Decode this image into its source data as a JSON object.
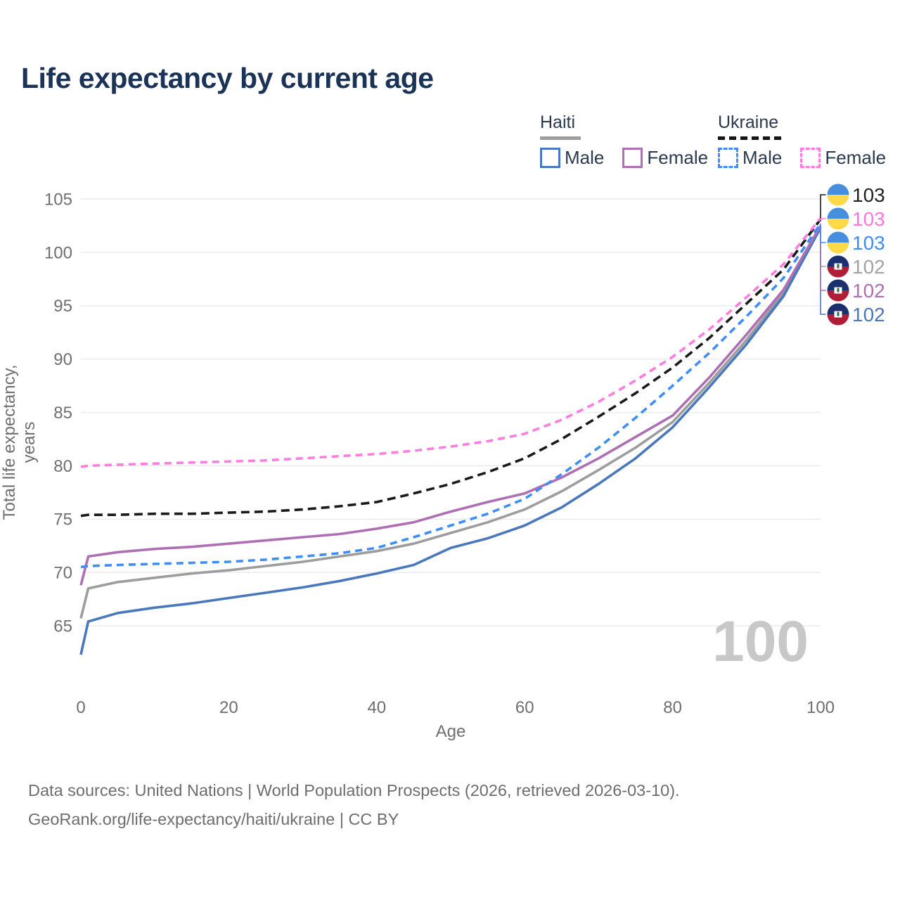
{
  "title": "Life expectancy by current age",
  "legend": {
    "groups": [
      {
        "label": "Haiti",
        "line_style": "solid",
        "underline_color": "#9e9e9e",
        "items": [
          {
            "label": "Male",
            "color": "#4a78bd",
            "dashed": false
          },
          {
            "label": "Female",
            "color": "#ae6fb4",
            "dashed": false
          }
        ]
      },
      {
        "label": "Ukraine",
        "line_style": "dashed",
        "underline_color": "#141414",
        "items": [
          {
            "label": "Male",
            "color": "#3e8ef7",
            "dashed": true
          },
          {
            "label": "Female",
            "color": "#ff7ce0",
            "dashed": true
          }
        ]
      }
    ]
  },
  "chart_data": {
    "type": "line",
    "title": "Life expectancy by current age",
    "xlabel": "Age",
    "ylabel": "Total life expectancy, years",
    "xlim": [
      0,
      100
    ],
    "ylim": [
      65,
      105
    ],
    "xticks": [
      0,
      20,
      40,
      60,
      80,
      100
    ],
    "yticks": [
      65,
      70,
      75,
      80,
      85,
      90,
      95,
      100,
      105
    ],
    "grid": "horizontal",
    "legend_position": "top-right",
    "watermark": "100",
    "x": [
      0,
      1,
      5,
      10,
      15,
      20,
      25,
      30,
      35,
      40,
      45,
      50,
      55,
      60,
      65,
      70,
      75,
      80,
      85,
      90,
      95,
      100
    ],
    "series": [
      {
        "name": "Haiti Total",
        "country": "Haiti",
        "sex": "both",
        "color": "#9d9d9d",
        "dashed": false,
        "flag": "haiti-flag",
        "end_label": "102",
        "end_label_color": "#a3a3a3",
        "label_row": 3,
        "values": [
          65.7,
          68.5,
          69.1,
          69.5,
          69.9,
          70.2,
          70.6,
          71.0,
          71.5,
          72.0,
          72.7,
          73.7,
          74.7,
          75.9,
          77.6,
          79.6,
          81.7,
          84.1,
          87.8,
          91.8,
          96.2,
          102.4
        ]
      },
      {
        "name": "Haiti Male",
        "country": "Haiti",
        "sex": "male",
        "color": "#4a78bd",
        "dashed": false,
        "flag": "haiti-flag",
        "end_label": "102",
        "end_label_color": "#4a78bd",
        "label_row": 5,
        "values": [
          62.3,
          65.4,
          66.2,
          66.7,
          67.1,
          67.6,
          68.1,
          68.6,
          69.2,
          69.9,
          70.7,
          72.3,
          73.2,
          74.4,
          76.1,
          78.3,
          80.7,
          83.6,
          87.4,
          91.4,
          95.9,
          102.3
        ]
      },
      {
        "name": "Haiti Female",
        "country": "Haiti",
        "sex": "female",
        "color": "#ae6fb4",
        "dashed": false,
        "flag": "haiti-flag",
        "end_label": "102",
        "end_label_color": "#b06fb2",
        "label_row": 4,
        "values": [
          68.8,
          71.5,
          71.9,
          72.2,
          72.4,
          72.7,
          73.0,
          73.3,
          73.6,
          74.1,
          74.7,
          75.7,
          76.6,
          77.4,
          78.9,
          80.7,
          82.7,
          84.7,
          88.3,
          92.3,
          96.5,
          102.5
        ]
      },
      {
        "name": "Ukraine Total",
        "country": "Ukraine",
        "sex": "both",
        "color": "#1a1a1a",
        "dashed": true,
        "dash": "12 7",
        "flag": "ukraine-flag",
        "end_label": "103",
        "end_label_color": "#222222",
        "label_row": 0,
        "values": [
          75.3,
          75.4,
          75.4,
          75.5,
          75.5,
          75.6,
          75.7,
          75.9,
          76.2,
          76.6,
          77.4,
          78.3,
          79.4,
          80.7,
          82.5,
          84.6,
          86.8,
          89.2,
          92.0,
          95.2,
          98.4,
          103.1
        ]
      },
      {
        "name": "Ukraine Male",
        "country": "Ukraine",
        "sex": "male",
        "color": "#3e8ef7",
        "dashed": true,
        "dash": "10 7",
        "flag": "ukraine-flag",
        "end_label": "103",
        "end_label_color": "#3e8ef7",
        "label_row": 2,
        "values": [
          70.5,
          70.6,
          70.7,
          70.8,
          70.9,
          71.0,
          71.2,
          71.5,
          71.8,
          72.3,
          73.3,
          74.4,
          75.5,
          76.9,
          79.2,
          81.7,
          84.5,
          87.5,
          90.6,
          94.0,
          97.6,
          102.7
        ]
      },
      {
        "name": "Ukraine Female",
        "country": "Ukraine",
        "sex": "female",
        "color": "#ff7ce0",
        "dashed": true,
        "dash": "10 7",
        "flag": "ukraine-flag",
        "end_label": "103",
        "end_label_color": "#ff77dd",
        "label_row": 1,
        "values": [
          79.9,
          80.0,
          80.1,
          80.2,
          80.3,
          80.4,
          80.5,
          80.7,
          80.9,
          81.1,
          81.4,
          81.8,
          82.3,
          83.0,
          84.3,
          86.0,
          88.0,
          90.2,
          92.8,
          95.8,
          98.9,
          103.2
        ]
      }
    ],
    "flags": {
      "ukraine-flag": {
        "top": "#458FDE",
        "bottom": "#FFD948"
      },
      "haiti-flag": {
        "top": "#1B2F6E",
        "bottom": "#AF1E36",
        "emblem": "#ffffff",
        "emblem_mark": "#2e6b4f"
      }
    }
  },
  "footer": {
    "line1": "Data sources: United Nations | World Population Prospects (2026, retrieved 2026-03-10).",
    "line2": "GeoRank.org/life-expectancy/haiti/ukraine | CC BY"
  }
}
